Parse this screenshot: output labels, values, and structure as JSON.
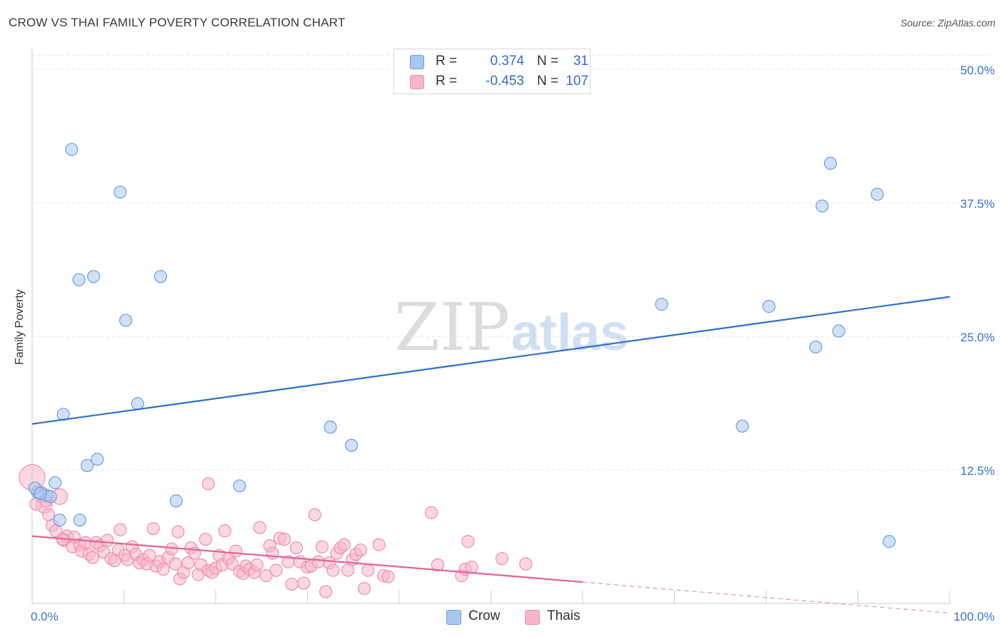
{
  "header": {
    "title": "CROW VS THAI FAMILY POVERTY CORRELATION CHART",
    "source": "Source: ZipAtlas.com"
  },
  "watermark": {
    "part1": "ZIP",
    "part2": "atlas"
  },
  "legend": {
    "rows": [
      {
        "r_label": "R =",
        "r_value": "0.374",
        "n_label": "N =",
        "n_value": "31",
        "color": "#a9c8f0"
      },
      {
        "r_label": "R =",
        "r_value": "-0.453",
        "n_label": "N =",
        "n_value": "107",
        "color": "#f7b6c8"
      }
    ]
  },
  "bottom_legend": {
    "crow": "Crow",
    "thais": "Thais"
  },
  "chart_data": {
    "type": "scatter",
    "ylabel": "Family Poverty",
    "xlim": [
      0,
      100
    ],
    "ylim": [
      0,
      50
    ],
    "x_tick_labels": [
      "0.0%",
      "100.0%"
    ],
    "y_ticks": [
      12.5,
      25.0,
      37.5,
      50.0
    ],
    "y_tick_labels": [
      "12.5%",
      "25.0%",
      "37.5%",
      "50.0%"
    ],
    "grid": true,
    "legend_position": "top-center",
    "series": [
      {
        "name": "Crow",
        "color": "#a9c8f0",
        "stroke": "#6c9fe0",
        "trend_color": "#2f6fd0",
        "trend": {
          "x0": 0,
          "y0": 16.8,
          "x1": 100,
          "y1": 28.7
        },
        "points": [
          [
            4.3,
            42.5
          ],
          [
            9.6,
            38.5
          ],
          [
            5.1,
            30.3
          ],
          [
            6.7,
            30.6
          ],
          [
            14.0,
            30.6
          ],
          [
            10.2,
            26.5
          ],
          [
            11.5,
            18.7
          ],
          [
            3.4,
            17.7
          ],
          [
            7.1,
            13.5
          ],
          [
            6.0,
            12.9
          ],
          [
            2.5,
            11.3
          ],
          [
            1.6,
            10.1
          ],
          [
            2.0,
            10.0
          ],
          [
            0.6,
            10.4
          ],
          [
            0.3,
            10.8
          ],
          [
            5.2,
            7.8
          ],
          [
            3.0,
            7.8
          ],
          [
            15.7,
            9.6
          ],
          [
            22.6,
            11.0
          ],
          [
            32.5,
            16.5
          ],
          [
            34.8,
            14.8
          ],
          [
            68.6,
            28.0
          ],
          [
            80.3,
            27.8
          ],
          [
            77.4,
            16.6
          ],
          [
            85.4,
            24.0
          ],
          [
            87.9,
            25.5
          ],
          [
            87.0,
            41.2
          ],
          [
            86.1,
            37.2
          ],
          [
            92.1,
            38.3
          ],
          [
            93.4,
            5.8
          ],
          [
            0.9,
            10.3
          ]
        ]
      },
      {
        "name": "Thais",
        "color": "#f7b6c8",
        "stroke": "#ee8fab",
        "trend_color": "#e8628f",
        "trend": {
          "x0": 0,
          "y0": 6.3,
          "x1": 60,
          "y1": 2.0
        },
        "trend_extension": {
          "x0": 60,
          "y0": 2.0,
          "x1": 100,
          "y1": -0.9
        },
        "points": [
          [
            0.0,
            11.8
          ],
          [
            1.0,
            10.2
          ],
          [
            1.3,
            9.2
          ],
          [
            3.0,
            10.0
          ],
          [
            1.8,
            8.3
          ],
          [
            2.2,
            7.3
          ],
          [
            2.6,
            6.8
          ],
          [
            3.5,
            5.9
          ],
          [
            3.8,
            6.3
          ],
          [
            4.4,
            5.3
          ],
          [
            4.6,
            6.2
          ],
          [
            5.2,
            5.5
          ],
          [
            5.4,
            4.9
          ],
          [
            5.8,
            5.7
          ],
          [
            6.2,
            4.6
          ],
          [
            6.6,
            4.3
          ],
          [
            7.0,
            5.7
          ],
          [
            7.4,
            5.4
          ],
          [
            7.8,
            4.8
          ],
          [
            8.2,
            5.9
          ],
          [
            8.6,
            4.2
          ],
          [
            9.0,
            4.0
          ],
          [
            9.4,
            5.0
          ],
          [
            9.6,
            6.9
          ],
          [
            10.1,
            4.5
          ],
          [
            10.4,
            4.1
          ],
          [
            10.9,
            5.3
          ],
          [
            11.3,
            4.6
          ],
          [
            11.7,
            3.8
          ],
          [
            12.1,
            4.1
          ],
          [
            12.5,
            3.7
          ],
          [
            12.8,
            4.5
          ],
          [
            13.2,
            7.0
          ],
          [
            13.5,
            3.5
          ],
          [
            13.9,
            3.9
          ],
          [
            14.3,
            3.2
          ],
          [
            14.8,
            4.3
          ],
          [
            15.2,
            5.1
          ],
          [
            15.6,
            3.7
          ],
          [
            15.9,
            6.7
          ],
          [
            16.1,
            2.3
          ],
          [
            16.5,
            2.9
          ],
          [
            17.0,
            3.8
          ],
          [
            17.3,
            5.2
          ],
          [
            17.7,
            4.7
          ],
          [
            18.1,
            2.7
          ],
          [
            18.4,
            3.6
          ],
          [
            18.9,
            6.0
          ],
          [
            19.2,
            3.1
          ],
          [
            19.6,
            2.9
          ],
          [
            20.0,
            3.3
          ],
          [
            20.4,
            4.5
          ],
          [
            20.7,
            3.6
          ],
          [
            21.0,
            6.8
          ],
          [
            21.4,
            4.2
          ],
          [
            21.8,
            3.7
          ],
          [
            22.2,
            4.9
          ],
          [
            22.6,
            3.0
          ],
          [
            23.0,
            2.8
          ],
          [
            23.3,
            3.5
          ],
          [
            23.7,
            3.2
          ],
          [
            24.2,
            2.9
          ],
          [
            24.5,
            3.6
          ],
          [
            24.8,
            7.1
          ],
          [
            25.5,
            2.6
          ],
          [
            25.9,
            5.4
          ],
          [
            26.2,
            4.7
          ],
          [
            26.6,
            3.1
          ],
          [
            27.0,
            6.1
          ],
          [
            27.5,
            6.0
          ],
          [
            27.9,
            3.9
          ],
          [
            28.3,
            1.8
          ],
          [
            28.8,
            5.2
          ],
          [
            29.2,
            3.9
          ],
          [
            29.6,
            1.9
          ],
          [
            30.0,
            3.4
          ],
          [
            30.4,
            3.5
          ],
          [
            30.8,
            8.3
          ],
          [
            31.2,
            3.9
          ],
          [
            31.6,
            5.3
          ],
          [
            32.0,
            1.1
          ],
          [
            32.4,
            3.8
          ],
          [
            32.8,
            3.1
          ],
          [
            33.2,
            4.7
          ],
          [
            33.6,
            5.2
          ],
          [
            34.0,
            5.5
          ],
          [
            34.4,
            3.1
          ],
          [
            34.9,
            4.1
          ],
          [
            35.3,
            4.6
          ],
          [
            35.8,
            5.0
          ],
          [
            36.2,
            1.4
          ],
          [
            36.6,
            3.1
          ],
          [
            37.8,
            5.5
          ],
          [
            38.3,
            2.6
          ],
          [
            38.8,
            2.5
          ],
          [
            43.5,
            8.5
          ],
          [
            44.2,
            3.6
          ],
          [
            46.8,
            2.6
          ],
          [
            47.2,
            3.2
          ],
          [
            47.5,
            5.8
          ],
          [
            47.9,
            3.4
          ],
          [
            51.2,
            4.2
          ],
          [
            53.8,
            3.7
          ],
          [
            19.2,
            11.2
          ],
          [
            0.4,
            9.3
          ],
          [
            3.3,
            6.0
          ],
          [
            1.5,
            9.6
          ]
        ]
      }
    ]
  }
}
